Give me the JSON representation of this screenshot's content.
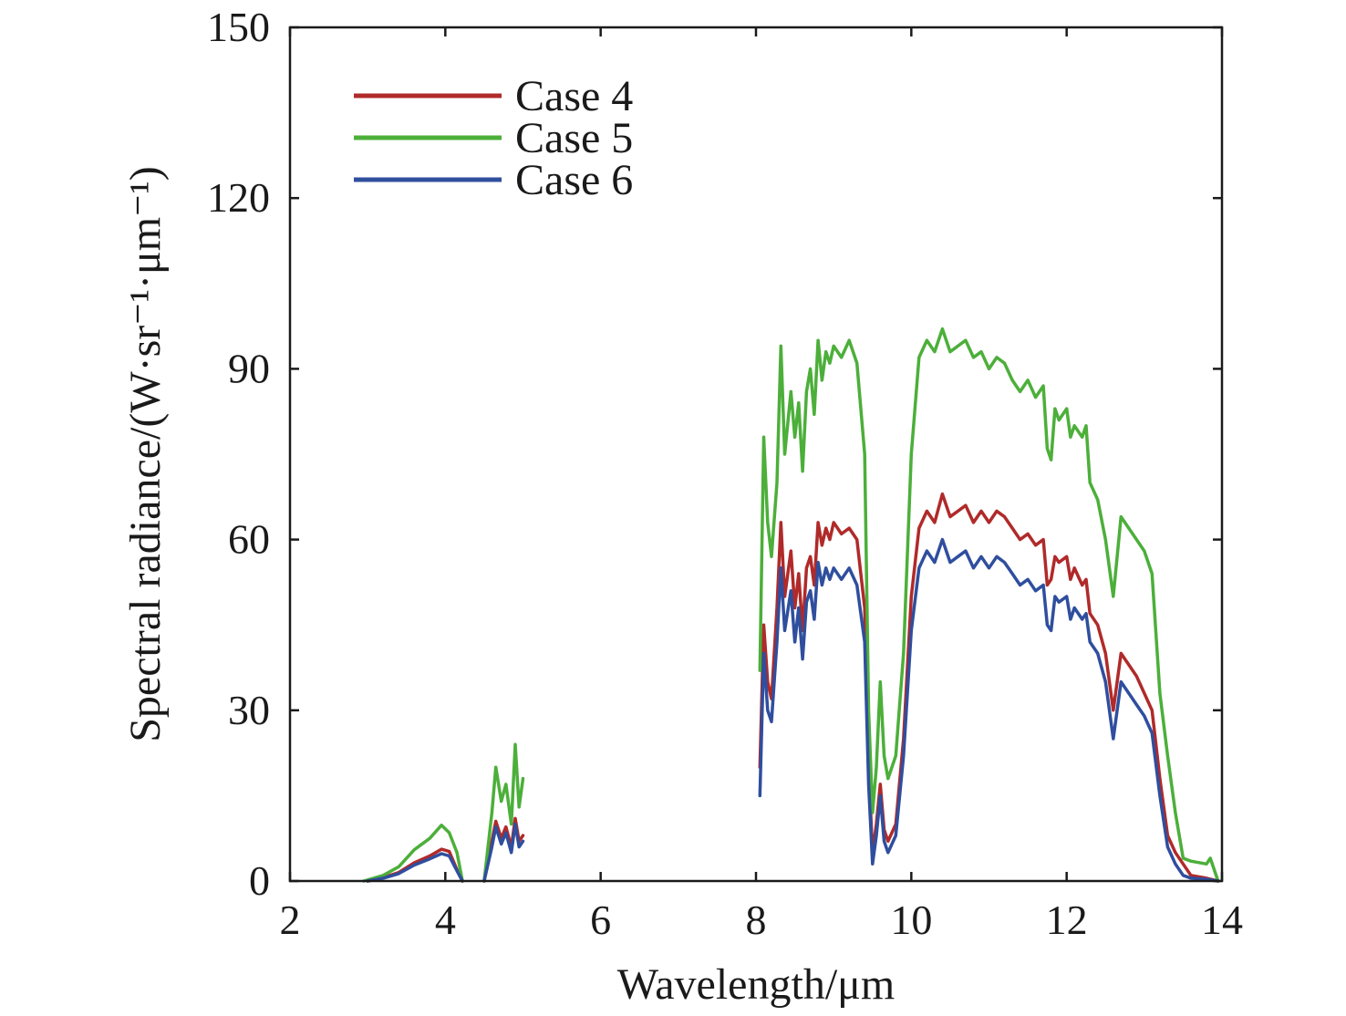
{
  "chart_data": {
    "type": "line",
    "xlabel": "Wavelength/μm",
    "ylabel": "Spectral radiance/(W·sr⁻¹·μm⁻¹)",
    "xlim": [
      2,
      14
    ],
    "ylim": [
      0,
      150
    ],
    "xticks": [
      2,
      4,
      6,
      8,
      10,
      12,
      14
    ],
    "yticks": [
      0,
      30,
      60,
      90,
      120,
      150
    ],
    "grid": false,
    "legend_position": "top-left",
    "series": [
      {
        "name": "Case 4",
        "color": "#b02a2a",
        "segments": [
          [
            [
              3.0,
              0
            ],
            [
              3.2,
              0.6
            ],
            [
              3.4,
              1.5
            ],
            [
              3.6,
              3.2
            ],
            [
              3.8,
              4.4
            ],
            [
              3.95,
              5.6
            ],
            [
              4.05,
              5.2
            ],
            [
              4.15,
              2.0
            ],
            [
              4.22,
              0
            ]
          ],
          [
            [
              4.5,
              0
            ],
            [
              4.6,
              7
            ],
            [
              4.65,
              10.5
            ],
            [
              4.72,
              7.5
            ],
            [
              4.78,
              9.5
            ],
            [
              4.85,
              6
            ],
            [
              4.9,
              11
            ],
            [
              4.95,
              7
            ],
            [
              5.0,
              8
            ]
          ],
          [
            [
              8.05,
              20
            ],
            [
              8.1,
              45
            ],
            [
              8.15,
              35
            ],
            [
              8.2,
              32
            ],
            [
              8.27,
              48
            ],
            [
              8.32,
              63
            ],
            [
              8.37,
              50
            ],
            [
              8.45,
              58
            ],
            [
              8.5,
              48
            ],
            [
              8.55,
              54
            ],
            [
              8.6,
              44
            ],
            [
              8.65,
              55
            ],
            [
              8.7,
              57
            ],
            [
              8.75,
              52
            ],
            [
              8.8,
              63
            ],
            [
              8.85,
              59
            ],
            [
              8.9,
              62
            ],
            [
              8.95,
              60
            ],
            [
              9.0,
              63
            ],
            [
              9.1,
              61
            ],
            [
              9.2,
              62
            ],
            [
              9.3,
              60
            ],
            [
              9.4,
              48
            ],
            [
              9.45,
              20
            ],
            [
              9.5,
              5
            ],
            [
              9.55,
              10
            ],
            [
              9.6,
              17
            ],
            [
              9.65,
              9
            ],
            [
              9.7,
              7
            ],
            [
              9.8,
              10
            ],
            [
              9.9,
              25
            ],
            [
              10.0,
              50
            ],
            [
              10.1,
              62
            ],
            [
              10.2,
              65
            ],
            [
              10.3,
              63
            ],
            [
              10.4,
              68
            ],
            [
              10.5,
              64
            ],
            [
              10.6,
              65
            ],
            [
              10.7,
              66
            ],
            [
              10.8,
              63
            ],
            [
              10.9,
              65
            ],
            [
              11.0,
              63
            ],
            [
              11.1,
              65
            ],
            [
              11.2,
              64
            ],
            [
              11.3,
              62
            ],
            [
              11.4,
              60
            ],
            [
              11.5,
              61
            ],
            [
              11.6,
              59
            ],
            [
              11.7,
              60
            ],
            [
              11.75,
              52
            ],
            [
              11.8,
              53
            ],
            [
              11.85,
              57
            ],
            [
              11.9,
              56
            ],
            [
              12.0,
              57
            ],
            [
              12.05,
              53
            ],
            [
              12.1,
              55
            ],
            [
              12.2,
              52
            ],
            [
              12.25,
              53
            ],
            [
              12.3,
              47
            ],
            [
              12.4,
              45
            ],
            [
              12.5,
              40
            ],
            [
              12.6,
              30
            ],
            [
              12.7,
              40
            ],
            [
              12.8,
              38
            ],
            [
              12.9,
              36
            ],
            [
              13.0,
              33
            ],
            [
              13.1,
              30
            ],
            [
              13.2,
              18
            ],
            [
              13.3,
              8
            ],
            [
              13.4,
              5
            ],
            [
              13.5,
              3
            ],
            [
              13.6,
              1
            ],
            [
              13.8,
              0.5
            ],
            [
              13.95,
              0
            ]
          ]
        ]
      },
      {
        "name": "Case 5",
        "color": "#4caf3a",
        "segments": [
          [
            [
              2.95,
              0
            ],
            [
              3.2,
              1.0
            ],
            [
              3.4,
              2.5
            ],
            [
              3.6,
              5.5
            ],
            [
              3.8,
              7.5
            ],
            [
              3.95,
              9.8
            ],
            [
              4.05,
              8.5
            ],
            [
              4.15,
              5.0
            ],
            [
              4.22,
              0
            ]
          ],
          [
            [
              4.5,
              0
            ],
            [
              4.6,
              12
            ],
            [
              4.65,
              20
            ],
            [
              4.72,
              14
            ],
            [
              4.78,
              17
            ],
            [
              4.85,
              10
            ],
            [
              4.9,
              24
            ],
            [
              4.95,
              13
            ],
            [
              5.0,
              18
            ]
          ],
          [
            [
              8.05,
              37
            ],
            [
              8.1,
              78
            ],
            [
              8.15,
              63
            ],
            [
              8.2,
              57
            ],
            [
              8.27,
              70
            ],
            [
              8.32,
              94
            ],
            [
              8.37,
              75
            ],
            [
              8.45,
              86
            ],
            [
              8.5,
              78
            ],
            [
              8.55,
              84
            ],
            [
              8.6,
              72
            ],
            [
              8.65,
              86
            ],
            [
              8.7,
              90
            ],
            [
              8.75,
              82
            ],
            [
              8.8,
              95
            ],
            [
              8.85,
              88
            ],
            [
              8.9,
              93
            ],
            [
              8.95,
              91
            ],
            [
              9.0,
              94
            ],
            [
              9.1,
              92
            ],
            [
              9.2,
              95
            ],
            [
              9.3,
              91
            ],
            [
              9.4,
              75
            ],
            [
              9.45,
              30
            ],
            [
              9.5,
              12
            ],
            [
              9.55,
              20
            ],
            [
              9.6,
              35
            ],
            [
              9.65,
              22
            ],
            [
              9.7,
              18
            ],
            [
              9.8,
              22
            ],
            [
              9.9,
              40
            ],
            [
              10.0,
              75
            ],
            [
              10.1,
              92
            ],
            [
              10.2,
              95
            ],
            [
              10.3,
              93
            ],
            [
              10.4,
              97
            ],
            [
              10.5,
              93
            ],
            [
              10.6,
              94
            ],
            [
              10.7,
              95
            ],
            [
              10.8,
              92
            ],
            [
              10.9,
              93
            ],
            [
              11.0,
              90
            ],
            [
              11.1,
              92
            ],
            [
              11.2,
              91
            ],
            [
              11.3,
              88
            ],
            [
              11.4,
              86
            ],
            [
              11.5,
              88
            ],
            [
              11.6,
              85
            ],
            [
              11.7,
              87
            ],
            [
              11.75,
              76
            ],
            [
              11.8,
              74
            ],
            [
              11.85,
              83
            ],
            [
              11.9,
              81
            ],
            [
              12.0,
              83
            ],
            [
              12.05,
              78
            ],
            [
              12.1,
              80
            ],
            [
              12.2,
              78
            ],
            [
              12.25,
              80
            ],
            [
              12.3,
              70
            ],
            [
              12.4,
              67
            ],
            [
              12.5,
              60
            ],
            [
              12.6,
              50
            ],
            [
              12.7,
              64
            ],
            [
              12.8,
              62
            ],
            [
              12.9,
              60
            ],
            [
              13.0,
              58
            ],
            [
              13.1,
              54
            ],
            [
              13.2,
              33
            ],
            [
              13.3,
              22
            ],
            [
              13.4,
              12
            ],
            [
              13.5,
              4
            ],
            [
              13.6,
              3.5
            ],
            [
              13.8,
              3
            ],
            [
              13.85,
              4
            ],
            [
              13.95,
              0
            ]
          ]
        ]
      },
      {
        "name": "Case 6",
        "color": "#2f4e9e",
        "segments": [
          [
            [
              3.0,
              0
            ],
            [
              3.2,
              0.5
            ],
            [
              3.4,
              1.3
            ],
            [
              3.6,
              2.8
            ],
            [
              3.8,
              3.9
            ],
            [
              3.95,
              4.8
            ],
            [
              4.05,
              4.4
            ],
            [
              4.15,
              1.8
            ],
            [
              4.22,
              0
            ]
          ],
          [
            [
              4.5,
              0
            ],
            [
              4.6,
              6
            ],
            [
              4.65,
              9.5
            ],
            [
              4.72,
              6.5
            ],
            [
              4.78,
              8.5
            ],
            [
              4.85,
              5
            ],
            [
              4.9,
              10
            ],
            [
              4.95,
              6
            ],
            [
              5.0,
              7
            ]
          ],
          [
            [
              8.05,
              15
            ],
            [
              8.1,
              40
            ],
            [
              8.15,
              30
            ],
            [
              8.2,
              28
            ],
            [
              8.27,
              42
            ],
            [
              8.32,
              55
            ],
            [
              8.37,
              44
            ],
            [
              8.45,
              51
            ],
            [
              8.5,
              42
            ],
            [
              8.55,
              48
            ],
            [
              8.6,
              39
            ],
            [
              8.65,
              49
            ],
            [
              8.7,
              51
            ],
            [
              8.75,
              46
            ],
            [
              8.8,
              56
            ],
            [
              8.85,
              52
            ],
            [
              8.9,
              55
            ],
            [
              8.95,
              53
            ],
            [
              9.0,
              55
            ],
            [
              9.1,
              53
            ],
            [
              9.2,
              55
            ],
            [
              9.3,
              52
            ],
            [
              9.4,
              42
            ],
            [
              9.45,
              17
            ],
            [
              9.5,
              3
            ],
            [
              9.55,
              8
            ],
            [
              9.6,
              15
            ],
            [
              9.65,
              7
            ],
            [
              9.7,
              5
            ],
            [
              9.8,
              8
            ],
            [
              9.9,
              22
            ],
            [
              10.0,
              44
            ],
            [
              10.1,
              55
            ],
            [
              10.2,
              58
            ],
            [
              10.3,
              56
            ],
            [
              10.4,
              60
            ],
            [
              10.5,
              56
            ],
            [
              10.6,
              57
            ],
            [
              10.7,
              58
            ],
            [
              10.8,
              55
            ],
            [
              10.9,
              57
            ],
            [
              11.0,
              55
            ],
            [
              11.1,
              57
            ],
            [
              11.2,
              56
            ],
            [
              11.3,
              54
            ],
            [
              11.4,
              52
            ],
            [
              11.5,
              53
            ],
            [
              11.6,
              51
            ],
            [
              11.7,
              52
            ],
            [
              11.75,
              45
            ],
            [
              11.8,
              44
            ],
            [
              11.85,
              50
            ],
            [
              11.9,
              49
            ],
            [
              12.0,
              50
            ],
            [
              12.05,
              46
            ],
            [
              12.1,
              48
            ],
            [
              12.2,
              46
            ],
            [
              12.25,
              47
            ],
            [
              12.3,
              42
            ],
            [
              12.4,
              40
            ],
            [
              12.5,
              35
            ],
            [
              12.6,
              25
            ],
            [
              12.7,
              35
            ],
            [
              12.8,
              33
            ],
            [
              12.9,
              31
            ],
            [
              13.0,
              29
            ],
            [
              13.1,
              26
            ],
            [
              13.2,
              15
            ],
            [
              13.3,
              6
            ],
            [
              13.4,
              3
            ],
            [
              13.5,
              1
            ],
            [
              13.6,
              0.5
            ],
            [
              13.8,
              0.3
            ],
            [
              13.95,
              0
            ]
          ]
        ]
      }
    ]
  }
}
